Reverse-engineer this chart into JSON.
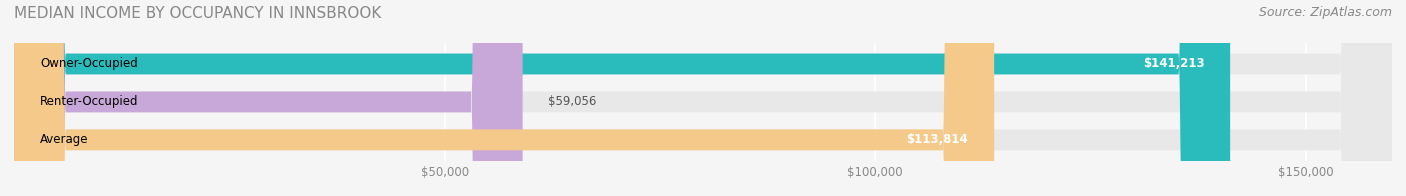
{
  "title": "MEDIAN INCOME BY OCCUPANCY IN INNSBROOK",
  "source": "Source: ZipAtlas.com",
  "categories": [
    "Owner-Occupied",
    "Renter-Occupied",
    "Average"
  ],
  "values": [
    141213,
    59056,
    113814
  ],
  "bar_colors": [
    "#2abcbc",
    "#c8a8d8",
    "#f5c98a"
  ],
  "bar_labels": [
    "$141,213",
    "$59,056",
    "$113,814"
  ],
  "xlim": [
    0,
    160000
  ],
  "xticks": [
    50000,
    100000,
    150000
  ],
  "xticklabels": [
    "$50,000",
    "$100,000",
    "$150,000"
  ],
  "background_color": "#f5f5f5",
  "bar_background_color": "#e8e8e8",
  "title_fontsize": 11,
  "source_fontsize": 9,
  "label_fontsize": 8.5,
  "tick_fontsize": 8.5
}
